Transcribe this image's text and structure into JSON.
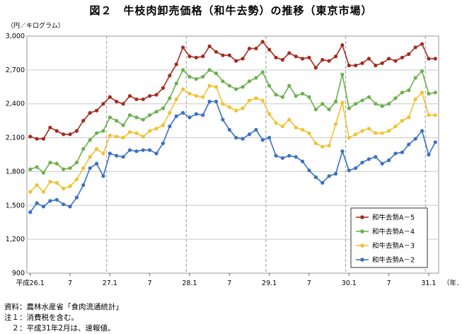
{
  "title": "図２　牛枝肉卸売価格（和牛去勢）の推移（東京市場）",
  "unit_label": "（円／キログラム）",
  "notes": [
    "資料：農林水産省「食肉流通統計」",
    "注１：消費税を含む。",
    "　２：平成31年2月は、速報値。"
  ],
  "colors": {
    "A5": "#a52a1e",
    "A4": "#6ab04c",
    "A3": "#f2c12e",
    "A2": "#3a6fc4",
    "grid": "#c8c8c8",
    "year_divider": "#999999"
  },
  "chart_data": {
    "type": "line",
    "xlabel": "",
    "ylabel": "（円／キログラム）",
    "ylim": [
      900,
      3000
    ],
    "yticks": [
      900,
      1200,
      1500,
      1800,
      2100,
      2400,
      2700,
      3000
    ],
    "ytick_labels": [
      "900",
      "1,200",
      "1,500",
      "1,800",
      "2,100",
      "2,400",
      "2,700",
      "3,000"
    ],
    "x_tick_labels": [
      {
        "index": 0,
        "label": "平成26.1"
      },
      {
        "index": 6,
        "label": "7"
      },
      {
        "index": 12,
        "label": "27.1"
      },
      {
        "index": 18,
        "label": "7"
      },
      {
        "index": 24,
        "label": "28.1"
      },
      {
        "index": 30,
        "label": "7"
      },
      {
        "index": 36,
        "label": "29.1"
      },
      {
        "index": 42,
        "label": "7"
      },
      {
        "index": 48,
        "label": "30.1"
      },
      {
        "index": 54,
        "label": "7"
      },
      {
        "index": 60,
        "label": "31.1"
      }
    ],
    "x_axis_suffix": "（年．月）",
    "year_boundaries": [
      12,
      24,
      36,
      48,
      60
    ],
    "grid": true,
    "legend_position": "bottom-right",
    "series": [
      {
        "name": "和牛去勢A－5",
        "key": "A5",
        "values": [
          2110,
          2090,
          2090,
          2190,
          2160,
          2130,
          2130,
          2160,
          2250,
          2320,
          2340,
          2400,
          2460,
          2420,
          2400,
          2470,
          2440,
          2440,
          2470,
          2480,
          2540,
          2650,
          2750,
          2900,
          2820,
          2810,
          2820,
          2910,
          2860,
          2830,
          2830,
          2780,
          2800,
          2890,
          2890,
          2950,
          2880,
          2810,
          2790,
          2850,
          2820,
          2800,
          2810,
          2720,
          2790,
          2780,
          2820,
          2920,
          2740,
          2740,
          2760,
          2800,
          2740,
          2760,
          2800,
          2780,
          2810,
          2840,
          2900,
          2930,
          2800,
          2800
        ]
      },
      {
        "name": "和牛去勢A－4",
        "key": "A4",
        "values": [
          1820,
          1840,
          1790,
          1880,
          1870,
          1820,
          1830,
          1880,
          2000,
          2080,
          2140,
          2160,
          2280,
          2250,
          2210,
          2300,
          2280,
          2260,
          2300,
          2330,
          2360,
          2450,
          2580,
          2700,
          2640,
          2620,
          2640,
          2700,
          2670,
          2600,
          2560,
          2530,
          2550,
          2600,
          2630,
          2680,
          2560,
          2480,
          2460,
          2560,
          2470,
          2490,
          2460,
          2350,
          2400,
          2350,
          2420,
          2660,
          2360,
          2400,
          2430,
          2460,
          2400,
          2380,
          2400,
          2450,
          2500,
          2520,
          2630,
          2690,
          2490,
          2500
        ]
      },
      {
        "name": "和牛去勢A－3",
        "key": "A3",
        "values": [
          1620,
          1680,
          1620,
          1710,
          1700,
          1650,
          1670,
          1730,
          1830,
          1930,
          2000,
          1960,
          2120,
          2110,
          2100,
          2150,
          2140,
          2110,
          2160,
          2180,
          2210,
          2320,
          2440,
          2530,
          2490,
          2470,
          2460,
          2560,
          2550,
          2400,
          2370,
          2340,
          2360,
          2430,
          2450,
          2430,
          2310,
          2230,
          2200,
          2260,
          2190,
          2170,
          2140,
          2050,
          2020,
          2030,
          2220,
          2410,
          2100,
          2130,
          2160,
          2180,
          2140,
          2140,
          2160,
          2200,
          2250,
          2280,
          2440,
          2500,
          2300,
          2300
        ]
      },
      {
        "name": "和牛去勢A－2",
        "key": "A2",
        "values": [
          1440,
          1520,
          1490,
          1540,
          1550,
          1510,
          1490,
          1570,
          1680,
          1830,
          1870,
          1760,
          1960,
          1940,
          1930,
          1990,
          1980,
          1990,
          1990,
          1960,
          2050,
          2200,
          2290,
          2320,
          2280,
          2310,
          2300,
          2420,
          2420,
          2260,
          2170,
          2100,
          2090,
          2130,
          2170,
          2080,
          2100,
          1940,
          1920,
          1940,
          1930,
          1890,
          1810,
          1750,
          1700,
          1760,
          1780,
          1980,
          1810,
          1830,
          1880,
          1910,
          1930,
          1870,
          1900,
          1960,
          1970,
          2040,
          2090,
          2160,
          1950,
          2060
        ]
      }
    ]
  }
}
